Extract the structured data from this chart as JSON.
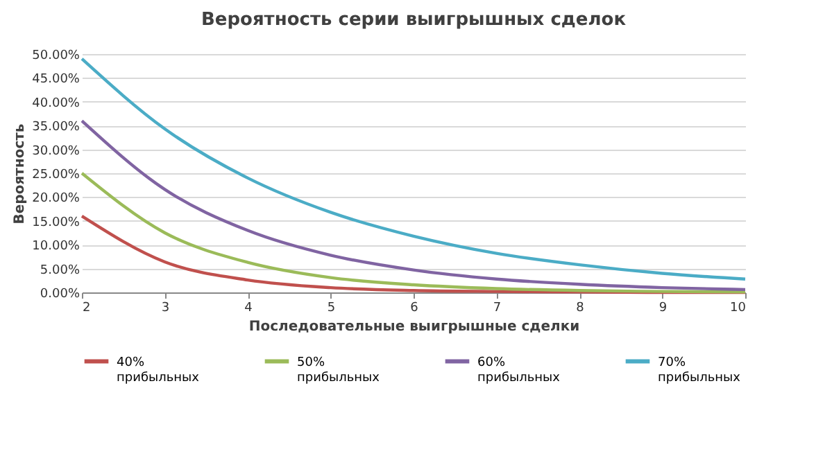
{
  "chart_data": {
    "type": "line",
    "title": "Вероятность серии выигрышных сделок",
    "xlabel": "Последовательные выигрышные сделки",
    "ylabel": "Вероятность",
    "x": [
      2,
      3,
      4,
      5,
      6,
      7,
      8,
      9,
      10
    ],
    "series": [
      {
        "name": "40% прибыльных",
        "color": "#c0504d",
        "values": [
          16,
          6.4,
          2.6,
          1.0,
          0.4,
          0.2,
          0.1,
          0.0,
          0.0
        ]
      },
      {
        "name": "50% прибыльных",
        "color": "#9bbb59",
        "values": [
          25,
          12.5,
          6.3,
          3.1,
          1.6,
          0.8,
          0.4,
          0.2,
          0.1
        ]
      },
      {
        "name": "60% прибыльных",
        "color": "#8064a2",
        "values": [
          36,
          21.6,
          13,
          7.8,
          4.7,
          2.8,
          1.7,
          1.0,
          0.6
        ]
      },
      {
        "name": "70% прибыльных",
        "color": "#4bacc6",
        "values": [
          49,
          34.3,
          24,
          16.8,
          11.8,
          8.2,
          5.8,
          4.0,
          2.8
        ]
      }
    ],
    "xlim": [
      2,
      10
    ],
    "xticks": [
      2,
      3,
      4,
      5,
      6,
      7,
      8,
      9,
      10
    ],
    "ylim": [
      0,
      50
    ],
    "yticks": [
      {
        "value": 0,
        "label": "0.00%"
      },
      {
        "value": 5,
        "label": "5.00%"
      },
      {
        "value": 10,
        "label": "10.00%"
      },
      {
        "value": 15,
        "label": "15.00%"
      },
      {
        "value": 20,
        "label": "20.00%"
      },
      {
        "value": 25,
        "label": "25.00%"
      },
      {
        "value": 30,
        "label": "30.00%"
      },
      {
        "value": 35,
        "label": "35.00%"
      },
      {
        "value": 40,
        "label": "40.00%"
      },
      {
        "value": 45,
        "label": "45.00%"
      },
      {
        "value": 50,
        "label": "50.00%"
      }
    ],
    "grid": "y",
    "legend": "bottom",
    "marker": "none",
    "line_style": "solid"
  }
}
